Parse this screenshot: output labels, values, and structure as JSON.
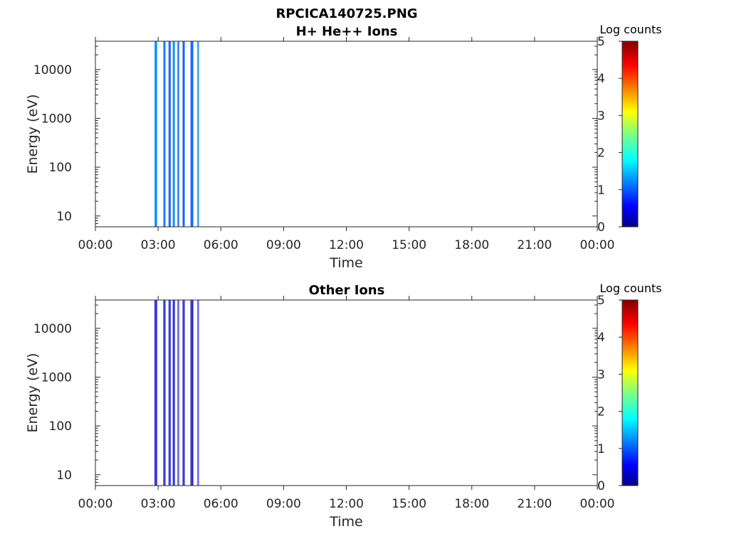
{
  "figure_title": "RPCICA140725.PNG",
  "colors": {
    "axis": "#262626",
    "background": "#ffffff"
  },
  "chart_data": [
    {
      "type": "heatmap",
      "title": "H+ He++ Ions",
      "xlabel": "Time",
      "ylabel": "Energy (eV)",
      "x_ticks": [
        "00:00",
        "03:00",
        "06:00",
        "09:00",
        "12:00",
        "15:00",
        "18:00",
        "21:00",
        "00:00"
      ],
      "xlim_hours": [
        0,
        24
      ],
      "y_scale": "log",
      "y_ticks": [
        10,
        100,
        1000,
        10000
      ],
      "y_tick_labels": [
        "10",
        "100",
        "1000",
        "10000"
      ],
      "ylim": [
        6,
        38000
      ],
      "colorbar": {
        "label": "Log counts",
        "range": [
          0,
          5
        ],
        "ticks": [
          "0",
          "1",
          "2",
          "3",
          "4",
          "5"
        ],
        "colormap": "jet"
      },
      "bursts": [
        {
          "t": [
            2.83,
            2.95
          ],
          "level": 1.3
        },
        {
          "t": [
            3.25,
            3.35
          ],
          "level": 1.2
        },
        {
          "t": [
            3.5,
            3.6
          ],
          "level": 1.0
        },
        {
          "t": [
            3.7,
            3.8
          ],
          "level": 1.3
        },
        {
          "t": [
            3.93,
            4.0
          ],
          "level": 0.9
        },
        {
          "t": [
            4.17,
            4.27
          ],
          "level": 1.0
        },
        {
          "t": [
            4.55,
            4.68
          ],
          "level": 1.1
        },
        {
          "t": [
            4.88,
            4.93
          ],
          "level": 1.2
        }
      ]
    },
    {
      "type": "heatmap",
      "title": "Other Ions",
      "xlabel": "Time",
      "ylabel": "Energy (eV)",
      "x_ticks": [
        "00:00",
        "03:00",
        "06:00",
        "09:00",
        "12:00",
        "15:00",
        "18:00",
        "21:00",
        "00:00"
      ],
      "xlim_hours": [
        0,
        24
      ],
      "y_scale": "log",
      "y_ticks": [
        10,
        100,
        1000,
        10000
      ],
      "y_tick_labels": [
        "10",
        "100",
        "1000",
        "10000"
      ],
      "ylim": [
        6,
        38000
      ],
      "colorbar": {
        "label": "Log counts",
        "range": [
          0,
          5
        ],
        "ticks": [
          "0",
          "1",
          "2",
          "3",
          "4",
          "5"
        ],
        "colormap": "jet"
      },
      "bursts": [
        {
          "t": [
            2.83,
            2.95
          ],
          "level": 0.4
        },
        {
          "t": [
            3.25,
            3.35
          ],
          "level": 0.3
        },
        {
          "t": [
            3.5,
            3.6
          ],
          "level": 0.5
        },
        {
          "t": [
            3.7,
            3.8
          ],
          "level": 0.3
        },
        {
          "t": [
            3.93,
            4.0
          ],
          "level": 0.2
        },
        {
          "t": [
            4.17,
            4.27
          ],
          "level": 0.4
        },
        {
          "t": [
            4.55,
            4.68
          ],
          "level": 0.3
        },
        {
          "t": [
            4.88,
            4.93
          ],
          "level": 0.6
        }
      ]
    }
  ]
}
